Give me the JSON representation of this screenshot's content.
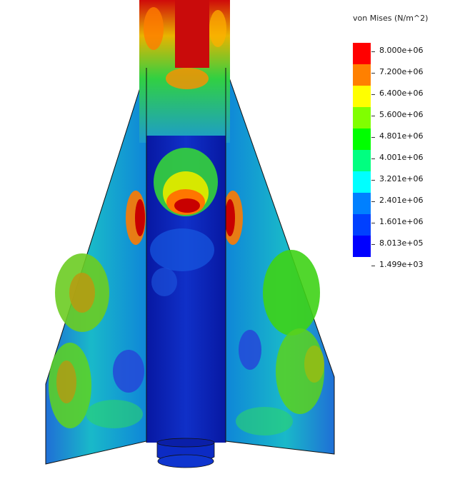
{
  "legend": {
    "title": "von Mises (N/m^2)",
    "levels": [
      {
        "label": "8.000e+06",
        "color": "#ff0000"
      },
      {
        "label": "7.200e+06",
        "color": "#ff8000"
      },
      {
        "label": "6.400e+06",
        "color": "#ffff00"
      },
      {
        "label": "5.600e+06",
        "color": "#80ff00"
      },
      {
        "label": "4.801e+06",
        "color": "#00ff00"
      },
      {
        "label": "4.001e+06",
        "color": "#00ff80"
      },
      {
        "label": "3.201e+06",
        "color": "#00ffff"
      },
      {
        "label": "2.401e+06",
        "color": "#0080ff"
      },
      {
        "label": "1.601e+06",
        "color": "#0040ff"
      },
      {
        "label": "8.013e+05",
        "color": "#0000ff"
      },
      {
        "label": "1.499e+03",
        "color": "#0000ff"
      }
    ]
  },
  "colors": {
    "fin_base": "#2a8fd0",
    "body_base": "#0a1fa8",
    "high": "#d40000",
    "orange": "#ff9100",
    "yellow": "#e6ff00",
    "green": "#3ddc1a",
    "teal": "#10c8b8",
    "outline": "#111111"
  }
}
